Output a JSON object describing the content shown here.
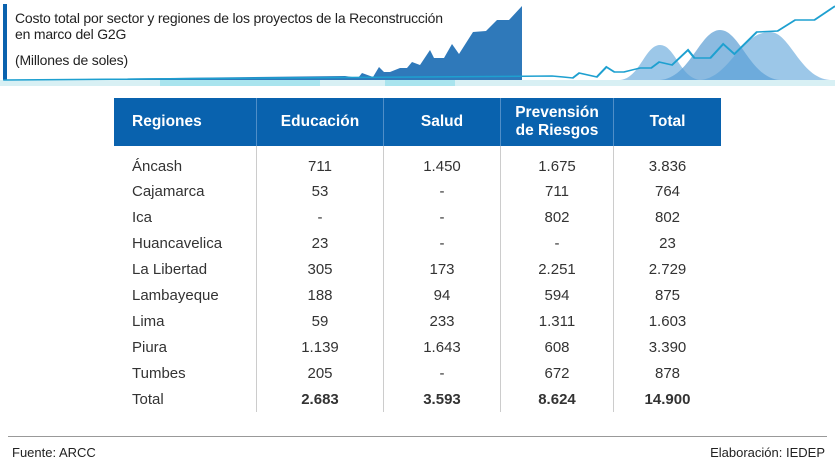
{
  "header": {
    "title_line1": "Costo total por sector y regiones de los proyectos de la Reconstrucción",
    "title_line2": "en marco del G2G",
    "subtitle": "(Millones de soles)"
  },
  "table": {
    "headers": [
      "Regiones",
      "Educación",
      "Salud",
      "Prevensión de Riesgos",
      "Total"
    ],
    "rows": [
      [
        "Áncash",
        "711",
        "1.450",
        "1.675",
        "3.836"
      ],
      [
        "Cajamarca",
        "53",
        "-",
        "711",
        "764"
      ],
      [
        "Ica",
        "-",
        "-",
        "802",
        "802"
      ],
      [
        "Huancavelica",
        "23",
        "-",
        "-",
        "23"
      ],
      [
        "La Libertad",
        "305",
        "173",
        "2.251",
        "2.729"
      ],
      [
        "Lambayeque",
        "188",
        "94",
        "594",
        "875"
      ],
      [
        "Lima",
        "59",
        "233",
        "1.311",
        "1.603"
      ],
      [
        "Piura",
        "1.139",
        "1.643",
        "608",
        "3.390"
      ],
      [
        "Tumbes",
        "205",
        "-",
        "672",
        "878"
      ],
      [
        "Total",
        "2.683",
        "3.593",
        "8.624",
        "14.900"
      ]
    ]
  },
  "footer": {
    "source": "Fuente: ARCC",
    "credit": "Elaboración: IEDEP"
  },
  "colors": {
    "header_bg": "#0962ae",
    "accent": "#0a62ae"
  }
}
